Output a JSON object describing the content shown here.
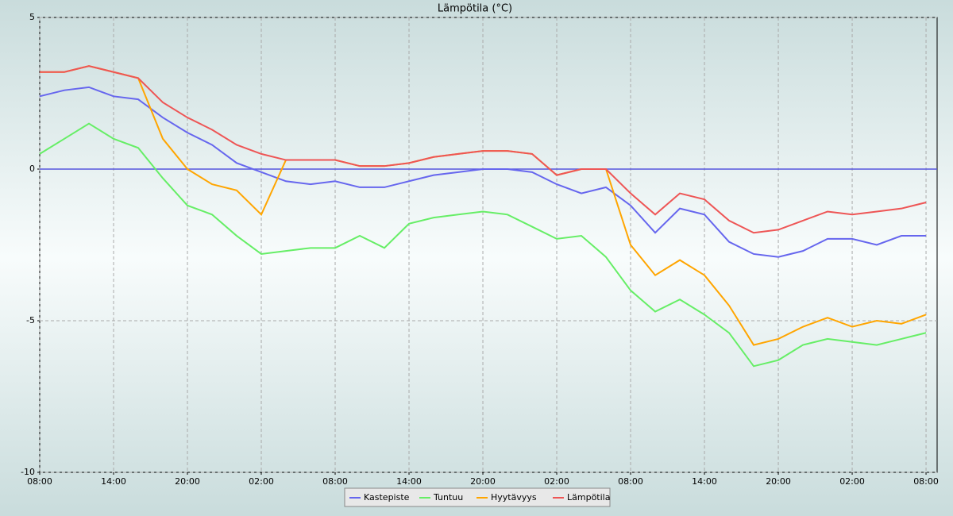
{
  "chart_data": {
    "type": "line",
    "title": "Lämpötila (°C)",
    "x": [
      0,
      2,
      4,
      6,
      8,
      10,
      12,
      14,
      16,
      18,
      20,
      22,
      24,
      26,
      28,
      30,
      32,
      34,
      36,
      38,
      40,
      42,
      44,
      46,
      48,
      50,
      52,
      54,
      56,
      58,
      60,
      62,
      64,
      66,
      68,
      70,
      72
    ],
    "series": [
      {
        "name": "Kastepiste",
        "color": "#6666ee",
        "values": [
          2.4,
          2.6,
          2.7,
          2.4,
          2.3,
          1.7,
          1.2,
          0.8,
          0.2,
          -0.1,
          -0.4,
          -0.5,
          -0.4,
          -0.6,
          -0.6,
          -0.4,
          -0.2,
          -0.1,
          0.0,
          0.0,
          -0.1,
          -0.5,
          -0.8,
          -0.6,
          -1.2,
          -2.1,
          -1.3,
          -1.5,
          -2.4,
          -2.8,
          -2.9,
          -2.7,
          -2.3,
          -2.3,
          -2.5,
          -2.2,
          -2.2
        ]
      },
      {
        "name": "Tuntuu",
        "color": "#66ee66",
        "values": [
          0.5,
          1.0,
          1.5,
          1.0,
          0.7,
          -0.3,
          -1.2,
          -1.5,
          -2.2,
          -2.8,
          -2.7,
          -2.6,
          -2.6,
          -2.2,
          -2.6,
          -1.8,
          -1.6,
          -1.5,
          -1.4,
          -1.5,
          -1.9,
          -2.3,
          -2.2,
          -2.9,
          -4.0,
          -4.7,
          -4.3,
          -4.8,
          -5.4,
          -6.5,
          -6.3,
          -5.8,
          -5.6,
          -5.7,
          -5.8,
          -5.6,
          -5.4
        ]
      },
      {
        "name": "Hyytävyys",
        "color": "#ffa500",
        "values": [
          3.2,
          3.2,
          3.4,
          3.2,
          3.0,
          1.0,
          0,
          -0.5,
          -0.7,
          -1.5,
          0.3,
          0.3,
          0.3,
          0.1,
          0.1,
          0.2,
          0.4,
          0.5,
          0.6,
          0.6,
          0.5,
          -0.2,
          0,
          0,
          -2.5,
          -3.5,
          -3.0,
          -3.5,
          -4.5,
          -5.8,
          -5.6,
          -5.2,
          -4.9,
          -5.2,
          -5.0,
          -5.1,
          -4.8
        ]
      },
      {
        "name": "Lämpötila",
        "color": "#ee5555",
        "values": [
          3.2,
          3.2,
          3.4,
          3.2,
          3.0,
          2.2,
          1.7,
          1.3,
          0.8,
          0.5,
          0.3,
          0.3,
          0.3,
          0.1,
          0.1,
          0.2,
          0.4,
          0.5,
          0.6,
          0.6,
          0.5,
          -0.2,
          0,
          0,
          -0.8,
          -1.5,
          -0.8,
          -1.0,
          -1.7,
          -2.1,
          -2.0,
          -1.7,
          -1.4,
          -1.5,
          -1.4,
          -1.3,
          -1.1
        ]
      }
    ],
    "xlim": [
      0,
      72.9
    ],
    "xticks": [
      {
        "value": 0,
        "label": "08:00"
      },
      {
        "value": 6,
        "label": "14:00"
      },
      {
        "value": 12,
        "label": "20:00"
      },
      {
        "value": 18,
        "label": "02:00"
      },
      {
        "value": 24,
        "label": "08:00"
      },
      {
        "value": 30,
        "label": "14:00"
      },
      {
        "value": 36,
        "label": "20:00"
      },
      {
        "value": 42,
        "label": "02:00"
      },
      {
        "value": 48,
        "label": "08:00"
      },
      {
        "value": 54,
        "label": "14:00"
      },
      {
        "value": 60,
        "label": "20:00"
      },
      {
        "value": 66,
        "label": "02:00"
      },
      {
        "value": 72,
        "label": "08:00"
      }
    ],
    "ylim": [
      -10,
      5
    ],
    "yticks": [
      5,
      0,
      -5,
      -10
    ],
    "grid": true,
    "hline": 0,
    "hline_color": "#5555dd"
  }
}
